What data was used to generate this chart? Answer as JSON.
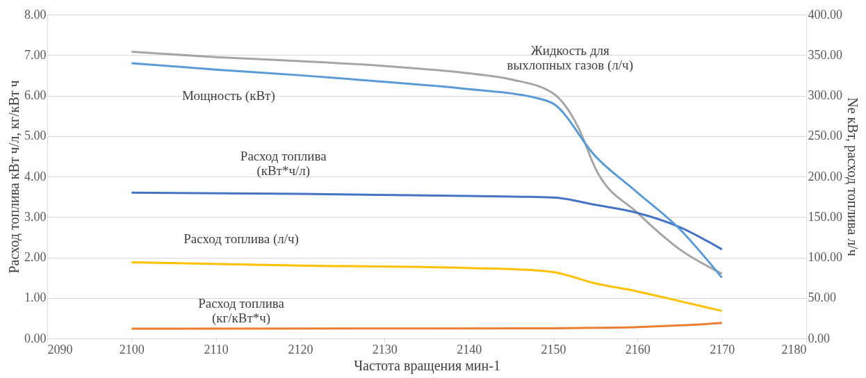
{
  "chart_data": {
    "type": "line",
    "xlabel": "Частота вращения мин-1",
    "ylabel": "Расход топлива кВт ч/л, кг/кВт ч",
    "y2label": "Ne кВт, расход топлива л/ч",
    "xlim": [
      2090,
      2180
    ],
    "xticks": [
      2090,
      2100,
      2110,
      2120,
      2130,
      2140,
      2150,
      2160,
      2170,
      2180
    ],
    "ylim": [
      0,
      8
    ],
    "yticks": [
      {
        "value": 0,
        "label": "0.00"
      },
      {
        "value": 1,
        "label": "1.00"
      },
      {
        "value": 2,
        "label": "2.00"
      },
      {
        "value": 3,
        "label": "3.00"
      },
      {
        "value": 4,
        "label": "4.00"
      },
      {
        "value": 5,
        "label": "5.00"
      },
      {
        "value": 6,
        "label": "6.00"
      },
      {
        "value": 7,
        "label": "7.00"
      },
      {
        "value": 8,
        "label": "8.00"
      }
    ],
    "y2lim": [
      0,
      400
    ],
    "y2ticks": [
      {
        "value": 0,
        "label": "0.00"
      },
      {
        "value": 50,
        "label": "50.00"
      },
      {
        "value": 100,
        "label": "100.00"
      },
      {
        "value": 150,
        "label": "150.00"
      },
      {
        "value": 200,
        "label": "200.00"
      },
      {
        "value": 250,
        "label": "250.00"
      },
      {
        "value": 300,
        "label": "300.00"
      },
      {
        "value": 350,
        "label": "350.00"
      },
      {
        "value": 400,
        "label": "400.00"
      }
    ],
    "grid": "y",
    "marker": "none",
    "line_style": "solid",
    "series": [
      {
        "name": "Жидкость для\nвыхлопных газов (л/ч)",
        "color": "#a5a5a5",
        "x": [
          2100,
          2110,
          2120,
          2130,
          2140,
          2145,
          2150,
          2153,
          2155,
          2160,
          2165,
          2170
        ],
        "values": [
          7.08,
          6.95,
          6.85,
          6.73,
          6.55,
          6.4,
          6.05,
          5.2,
          4.2,
          3.1,
          2.2,
          1.6
        ]
      },
      {
        "name": "Мощность (кВт)",
        "color": "#5b9bd5",
        "axis": "y2",
        "x": [
          2100,
          2110,
          2120,
          2130,
          2140,
          2148,
          2150,
          2155,
          2160,
          2165,
          2170
        ],
        "values": [
          340,
          332,
          325,
          317,
          308,
          297,
          290,
          225,
          180,
          135,
          75
        ]
      },
      {
        "name": "Расход топлива\n(кВт*ч/л)",
        "color": "#4472c4",
        "x": [
          2100,
          2120,
          2140,
          2150,
          2155,
          2160,
          2165,
          2170
        ],
        "values": [
          3.6,
          3.57,
          3.52,
          3.48,
          3.3,
          3.1,
          2.75,
          2.2
        ]
      },
      {
        "name": "Расход топлива (л/ч)",
        "color": "#ffc000",
        "axis": "y2",
        "x": [
          2100,
          2120,
          2140,
          2148,
          2150,
          2155,
          2160,
          2165,
          2170
        ],
        "values": [
          94,
          90,
          87,
          84,
          82,
          68,
          58,
          46,
          34
        ]
      },
      {
        "name": "Расход топлива\n(кг/кВт*ч)",
        "color": "#ed7d31",
        "x": [
          2100,
          2150,
          2155,
          2160,
          2165,
          2170
        ],
        "values": [
          0.24,
          0.25,
          0.26,
          0.28,
          0.32,
          0.38
        ]
      }
    ]
  }
}
